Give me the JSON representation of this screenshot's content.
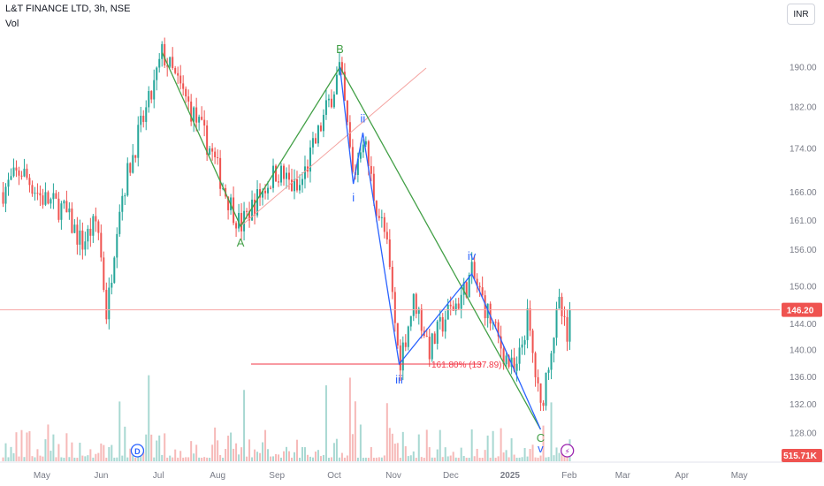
{
  "symbol_line": "L&T FINANCE LTD, 3h, NSE",
  "vol_label": "Vol",
  "currency": "INR",
  "colors": {
    "up": "#26a69a",
    "down": "#ef5350",
    "green_wave": "#43a047",
    "blue_wave": "#2962ff",
    "fib": "#f23645",
    "price_line": "#f7a8a6",
    "vol_up": "#a8d8d2",
    "vol_down": "#f6b9b8",
    "event": "#9c27b0"
  },
  "chart_data": {
    "type": "candlestick",
    "title": "L&T FINANCE LTD, 3h, NSE",
    "y_axis": {
      "ticks": [
        128.0,
        132.0,
        136.0,
        140.0,
        144.0,
        150.0,
        156.0,
        161.0,
        166.0,
        174.0,
        182.0,
        190.0
      ],
      "tick_labels": [
        "128.00",
        "132.00",
        "136.00",
        "140.00",
        "144.00",
        "150.00",
        "156.00",
        "161.00",
        "166.00",
        "174.00",
        "182.00",
        "190.00"
      ],
      "scale": "log"
    },
    "x_axis": {
      "tick_labels": [
        "May",
        "Jun",
        "Jul",
        "Aug",
        "Sep",
        "Oct",
        "Nov",
        "Dec",
        "2025",
        "Feb",
        "Mar",
        "Apr",
        "May"
      ]
    },
    "last_price": 146.2,
    "last_price_label": "146.20",
    "volume_label": "515.71K",
    "price_path": [
      [
        "2024-04-10",
        166
      ],
      [
        "2024-04-20",
        170
      ],
      [
        "2024-05-01",
        165
      ],
      [
        "2024-05-12",
        163
      ],
      [
        "2024-05-22",
        157
      ],
      [
        "2024-05-30",
        161
      ],
      [
        "2024-06-04",
        145
      ],
      [
        "2024-06-10",
        163
      ],
      [
        "2024-06-20",
        176
      ],
      [
        "2024-06-28",
        185
      ],
      [
        "2024-07-03",
        193
      ],
      [
        "2024-07-12",
        186
      ],
      [
        "2024-07-20",
        180
      ],
      [
        "2024-07-28",
        174
      ],
      [
        "2024-08-05",
        166
      ],
      [
        "2024-08-13",
        160
      ],
      [
        "2024-08-22",
        165
      ],
      [
        "2024-09-01",
        170
      ],
      [
        "2024-09-12",
        166
      ],
      [
        "2024-09-22",
        176
      ],
      [
        "2024-10-01",
        186
      ],
      [
        "2024-10-04",
        190
      ],
      [
        "2024-10-11",
        168
      ],
      [
        "2024-10-16",
        177
      ],
      [
        "2024-10-22",
        165
      ],
      [
        "2024-10-28",
        158
      ],
      [
        "2024-11-04",
        138
      ],
      [
        "2024-11-12",
        148
      ],
      [
        "2024-11-20",
        140
      ],
      [
        "2024-11-28",
        145
      ],
      [
        "2024-12-06",
        148
      ],
      [
        "2024-12-12",
        152
      ],
      [
        "2024-12-20",
        146
      ],
      [
        "2024-12-28",
        140
      ],
      [
        "2025-01-04",
        136
      ],
      [
        "2025-01-10",
        145
      ],
      [
        "2025-01-17",
        131
      ],
      [
        "2025-01-22",
        140
      ],
      [
        "2025-01-27",
        147
      ],
      [
        "2025-01-31",
        141
      ],
      [
        "2025-02-02",
        146.2
      ]
    ],
    "waves": {
      "green": [
        {
          "label": "A",
          "date": "2024-08-13",
          "price": 160
        },
        {
          "label": "B",
          "date": "2024-10-04",
          "price": 190
        },
        {
          "label": "C",
          "date": "2025-01-17",
          "price": 128.5
        }
      ],
      "blue": [
        {
          "label": "i",
          "date": "2024-10-11",
          "price": 167.5
        },
        {
          "label": "ii",
          "date": "2024-10-16",
          "price": 177
        },
        {
          "label": "iii",
          "date": "2024-11-04",
          "price": 137.89
        },
        {
          "label": "iv",
          "date": "2024-12-12",
          "price": 152
        },
        {
          "label": "v",
          "date": "2025-01-17",
          "price": 128.5
        }
      ]
    },
    "fib_extension": {
      "label": "161.80% (137.89)",
      "level": 137.89
    },
    "event_markers": [
      {
        "label": "D",
        "date": "2024-06-20"
      },
      {
        "label": "⚡",
        "date": "2025-01-31"
      }
    ]
  }
}
